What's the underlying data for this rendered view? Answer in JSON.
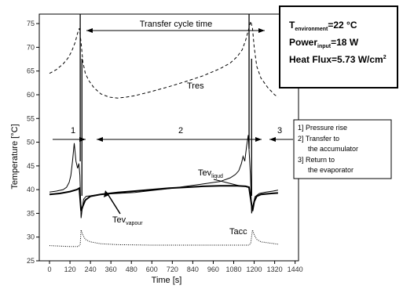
{
  "chart_data": {
    "type": "line",
    "xlabel": "Time [s]",
    "ylabel": "Temperature [°C]",
    "xlim": [
      -60,
      1460
    ],
    "ylim": [
      25,
      77
    ],
    "xticks": [
      0,
      120,
      240,
      360,
      480,
      600,
      720,
      840,
      960,
      1080,
      1200,
      1320,
      1440
    ],
    "yticks": [
      25,
      30,
      35,
      40,
      45,
      50,
      55,
      60,
      65,
      70,
      75
    ],
    "grid": false,
    "series": [
      {
        "name": "Tres",
        "style": "dashed",
        "x": [
          0,
          40,
          80,
          110,
          130,
          150,
          165,
          175,
          185,
          195,
          210,
          230,
          260,
          300,
          350,
          400,
          450,
          500,
          600,
          700,
          800,
          900,
          1000,
          1060,
          1100,
          1130,
          1150,
          1165,
          1180,
          1190,
          1200,
          1215,
          1240,
          1280,
          1320,
          1340
        ],
        "y": [
          64.5,
          65.3,
          66.5,
          67.8,
          69.2,
          71,
          73,
          74,
          71,
          67,
          64.5,
          63,
          61.5,
          60.2,
          59.5,
          59.3,
          59.5,
          59.8,
          60.7,
          61.7,
          62.8,
          64,
          65.5,
          66.7,
          68,
          69.5,
          71.5,
          73.5,
          75.5,
          74,
          70,
          66,
          63.5,
          61.5,
          60,
          59.5
        ]
      },
      {
        "name": "Tev_liquid",
        "style": "solid",
        "x": [
          0,
          40,
          80,
          100,
          115,
          125,
          135,
          145,
          155,
          165,
          172,
          178,
          185,
          192,
          200,
          215,
          240,
          300,
          400,
          500,
          600,
          700,
          800,
          900,
          1000,
          1060,
          1090,
          1110,
          1125,
          1135,
          1145,
          1155,
          1165,
          1172,
          1178,
          1185,
          1195,
          1205,
          1230,
          1270,
          1310,
          1340
        ],
        "y": [
          39.5,
          39.7,
          40,
          40.5,
          41.5,
          43,
          46,
          49.8,
          46,
          44.5,
          45.5,
          43,
          34,
          36,
          38,
          38.6,
          38.7,
          39,
          39.2,
          39.4,
          39.8,
          40.2,
          40.7,
          41.2,
          41.7,
          42.5,
          43.2,
          44,
          45.5,
          47,
          46,
          49,
          51.5,
          47,
          43,
          35,
          37,
          38.5,
          39.2,
          39.5,
          39.7,
          39.9
        ]
      },
      {
        "name": "Tev_vapour",
        "style": "solid-thick",
        "x": [
          0,
          60,
          120,
          160,
          175,
          185,
          195,
          210,
          240,
          300,
          400,
          500,
          600,
          700,
          800,
          900,
          1000,
          1100,
          1150,
          1170,
          1180,
          1190,
          1200,
          1215,
          1240,
          1300,
          1340
        ],
        "y": [
          39,
          39.2,
          39.6,
          40,
          40.3,
          35.5,
          36.5,
          37.8,
          38.6,
          39,
          39.4,
          39.7,
          40,
          40.3,
          40.5,
          40.7,
          40.8,
          40.8,
          40.7,
          40.5,
          38,
          35.5,
          37.5,
          38.6,
          39,
          39.2,
          39.3
        ]
      },
      {
        "name": "Tacc",
        "style": "dotted",
        "x": [
          0,
          60,
          120,
          170,
          180,
          185,
          195,
          210,
          240,
          300,
          400,
          600,
          800,
          1000,
          1100,
          1170,
          1180,
          1190,
          1200,
          1215,
          1240,
          1300,
          1340
        ],
        "y": [
          28.2,
          28.1,
          28,
          28,
          28.5,
          31.5,
          30.5,
          29.5,
          29,
          28.6,
          28.4,
          28.3,
          28.3,
          28.3,
          28.3,
          28.3,
          28.7,
          31.5,
          30.5,
          29.5,
          29,
          28.7,
          28.5
        ]
      }
    ],
    "vertical_markers": [
      180,
      190,
      1170,
      1185
    ],
    "annotations": {
      "cycle_label": "Transfer cycle time",
      "phase_1": "1",
      "phase_2": "2",
      "phase_3": "3",
      "series_tres": "Tres",
      "series_tev_liquid_main": "Tev",
      "series_tev_liquid_sub": "liqud",
      "series_tev_vapour_main": "Tev",
      "series_tev_vapour_sub": "vapour",
      "series_tacc": "Tacc"
    },
    "phase_legend": [
      "1] Pressure rise",
      "2] Transfer to",
      "the accumulator",
      "3] Return to",
      "the evaporator"
    ],
    "conditions": {
      "line1_main": "T",
      "line1_sub": "environment",
      "line1_value": "=22 °C",
      "line2_main": "Power",
      "line2_sub": "input",
      "line2_value": "=18 W",
      "line3_main": "Heat Flux=5.73 W/cm",
      "line3_sup": "2"
    }
  }
}
